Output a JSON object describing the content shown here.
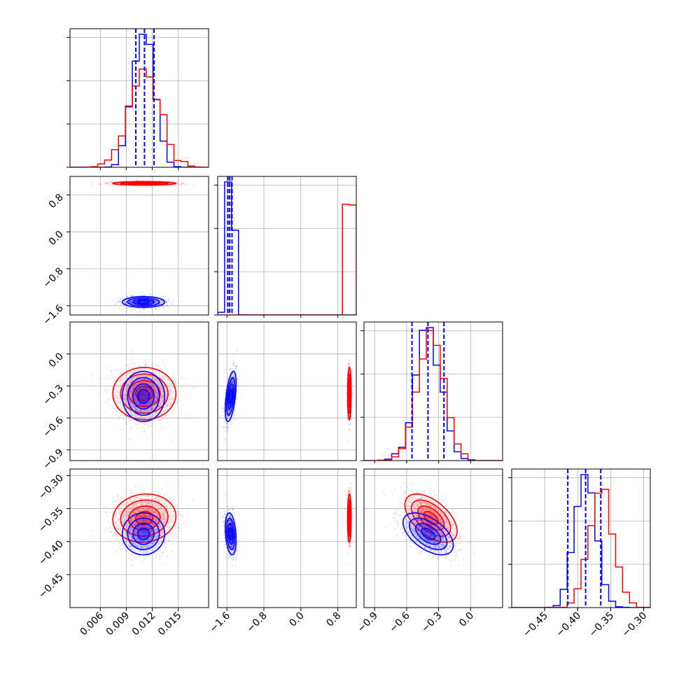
{
  "colors": {
    "series_a": "#ff0000",
    "series_b": "#0000ff",
    "grid": "#b0b0b0",
    "axis": "#000000"
  },
  "chart_data": {
    "type": "corner",
    "dimensions": 4,
    "grid": true,
    "series": [
      {
        "color": "#ff0000",
        "means": [
          0.011,
          1.05,
          -0.37,
          -0.365
        ],
        "sds": [
          0.0018,
          0.02,
          0.12,
          0.018
        ],
        "corr_3_2": -0.55,
        "corr_3_0": 0.05
      },
      {
        "color": "#0000ff",
        "means": [
          0.011,
          -1.52,
          -0.4,
          -0.388
        ],
        "sds": [
          0.0012,
          0.06,
          0.12,
          0.016
        ],
        "corr_1_2": 0.55,
        "corr_3_2": -0.55
      }
    ],
    "quantiles_blue": [
      [
        0.0101,
        0.0111,
        0.0122
      ],
      [
        -1.58,
        -1.54,
        -1.49
      ],
      [
        -0.55,
        -0.4,
        -0.25
      ],
      [
        -0.415,
        -0.388,
        -0.365
      ]
    ],
    "axes": [
      {
        "range": [
          0.0025,
          0.0185
        ],
        "ticks": [
          0.006,
          0.009,
          0.012,
          0.015
        ],
        "tick_labels": [
          "0.006",
          "0.009",
          "0.012",
          "0.015"
        ]
      },
      {
        "range": [
          -1.8,
          1.2
        ],
        "ticks": [
          -1.6,
          -0.8,
          0.0,
          0.8
        ],
        "tick_labels": [
          "−1.6",
          "−0.8",
          "0.0",
          "0.8"
        ]
      },
      {
        "range": [
          -1.0,
          0.3
        ],
        "ticks": [
          -0.9,
          -0.6,
          -0.3,
          0.0
        ],
        "tick_labels": [
          "−0.9",
          "−0.6",
          "−0.3",
          "0.0"
        ]
      },
      {
        "range": [
          -0.5,
          -0.29
        ],
        "ticks": [
          -0.45,
          -0.4,
          -0.35,
          -0.3
        ],
        "tick_labels": [
          "−0.45",
          "−0.40",
          "−0.35",
          "−0.30"
        ]
      }
    ]
  }
}
